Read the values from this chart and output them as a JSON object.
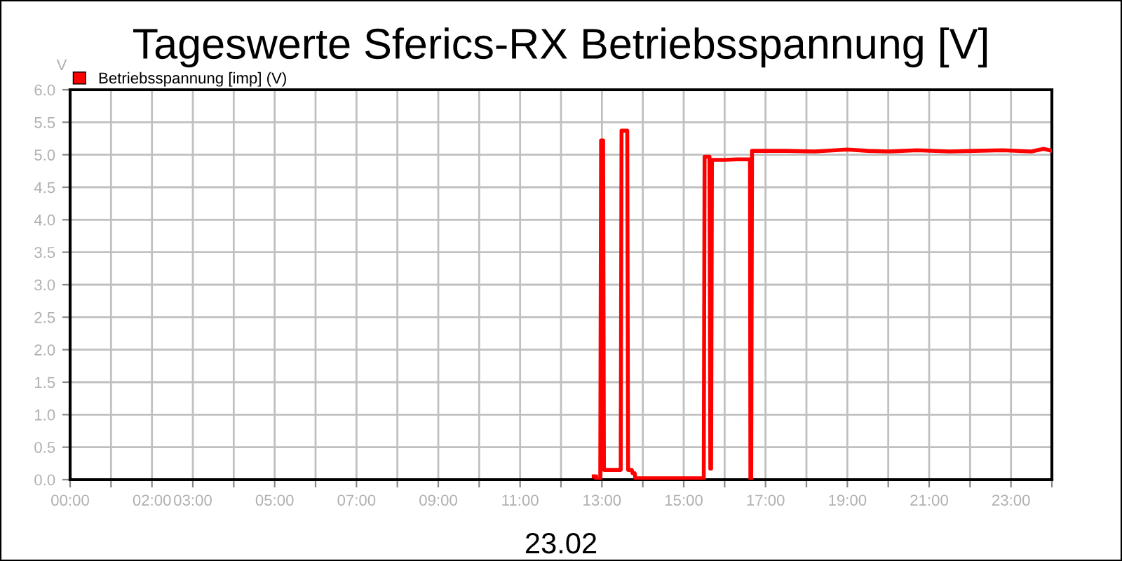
{
  "chart_data": {
    "type": "line",
    "title": "Tageswerte Sferics-RX Betriebsspannung [V]",
    "xlabel": "23.02",
    "ylabel": "V",
    "series": [
      {
        "name": "Betriebsspannung [imp] (V)",
        "color": "#ff0000",
        "x": [
          12.8,
          12.86,
          12.86,
          12.96,
          12.98,
          13.03,
          13.05,
          13.46,
          13.48,
          13.62,
          13.64,
          13.73,
          13.75,
          13.8,
          13.82,
          15.49,
          15.51,
          15.63,
          15.65,
          15.67,
          15.69,
          16.0,
          16.3,
          16.62,
          16.63,
          16.65,
          16.67,
          17.5,
          18.2,
          19.0,
          19.5,
          20.0,
          20.7,
          21.5,
          22.1,
          22.8,
          23.5,
          23.8,
          24.0
        ],
        "values": [
          0.05,
          0.05,
          0.0,
          0.0,
          5.22,
          5.22,
          0.15,
          0.15,
          5.37,
          5.37,
          0.15,
          0.15,
          0.1,
          0.1,
          0.02,
          0.02,
          4.97,
          4.97,
          0.17,
          0.17,
          4.92,
          4.92,
          4.93,
          4.93,
          0.0,
          0.0,
          5.06,
          5.06,
          5.05,
          5.08,
          5.06,
          5.05,
          5.07,
          5.05,
          5.06,
          5.07,
          5.05,
          5.09,
          5.06
        ]
      }
    ],
    "xlim": [
      0,
      24
    ],
    "xticks": [
      {
        "value": 0,
        "label": "00:00"
      },
      {
        "value": 1,
        "label": null
      },
      {
        "value": 2,
        "label": "02:00"
      },
      {
        "value": 3,
        "label": "03:00"
      },
      {
        "value": 4,
        "label": null
      },
      {
        "value": 5,
        "label": "05:00"
      },
      {
        "value": 6,
        "label": null
      },
      {
        "value": 7,
        "label": "07:00"
      },
      {
        "value": 8,
        "label": null
      },
      {
        "value": 9,
        "label": "09:00"
      },
      {
        "value": 10,
        "label": null
      },
      {
        "value": 11,
        "label": "11:00"
      },
      {
        "value": 12,
        "label": null
      },
      {
        "value": 13,
        "label": "13:00"
      },
      {
        "value": 14,
        "label": null
      },
      {
        "value": 15,
        "label": "15:00"
      },
      {
        "value": 16,
        "label": null
      },
      {
        "value": 17,
        "label": "17:00"
      },
      {
        "value": 18,
        "label": null
      },
      {
        "value": 19,
        "label": "19:00"
      },
      {
        "value": 20,
        "label": null
      },
      {
        "value": 21,
        "label": "21:00"
      },
      {
        "value": 22,
        "label": null
      },
      {
        "value": 23,
        "label": "23:00"
      },
      {
        "value": 24,
        "label": null
      }
    ],
    "ylim": [
      0,
      6
    ],
    "yticks": [
      {
        "value": 0,
        "label": "0.0"
      },
      0.5,
      {
        "value": 1,
        "label": "1.0"
      },
      1.5,
      {
        "value": 2,
        "label": "2.0"
      },
      2.5,
      {
        "value": 3,
        "label": "3.0"
      },
      3.5,
      {
        "value": 4,
        "label": "4.0"
      },
      4.5,
      {
        "value": 5,
        "label": "5.0"
      },
      5.5,
      {
        "value": 6,
        "label": "6.0"
      }
    ],
    "grid": true,
    "legend": "top left",
    "marker": "none",
    "line_style": "solid"
  }
}
